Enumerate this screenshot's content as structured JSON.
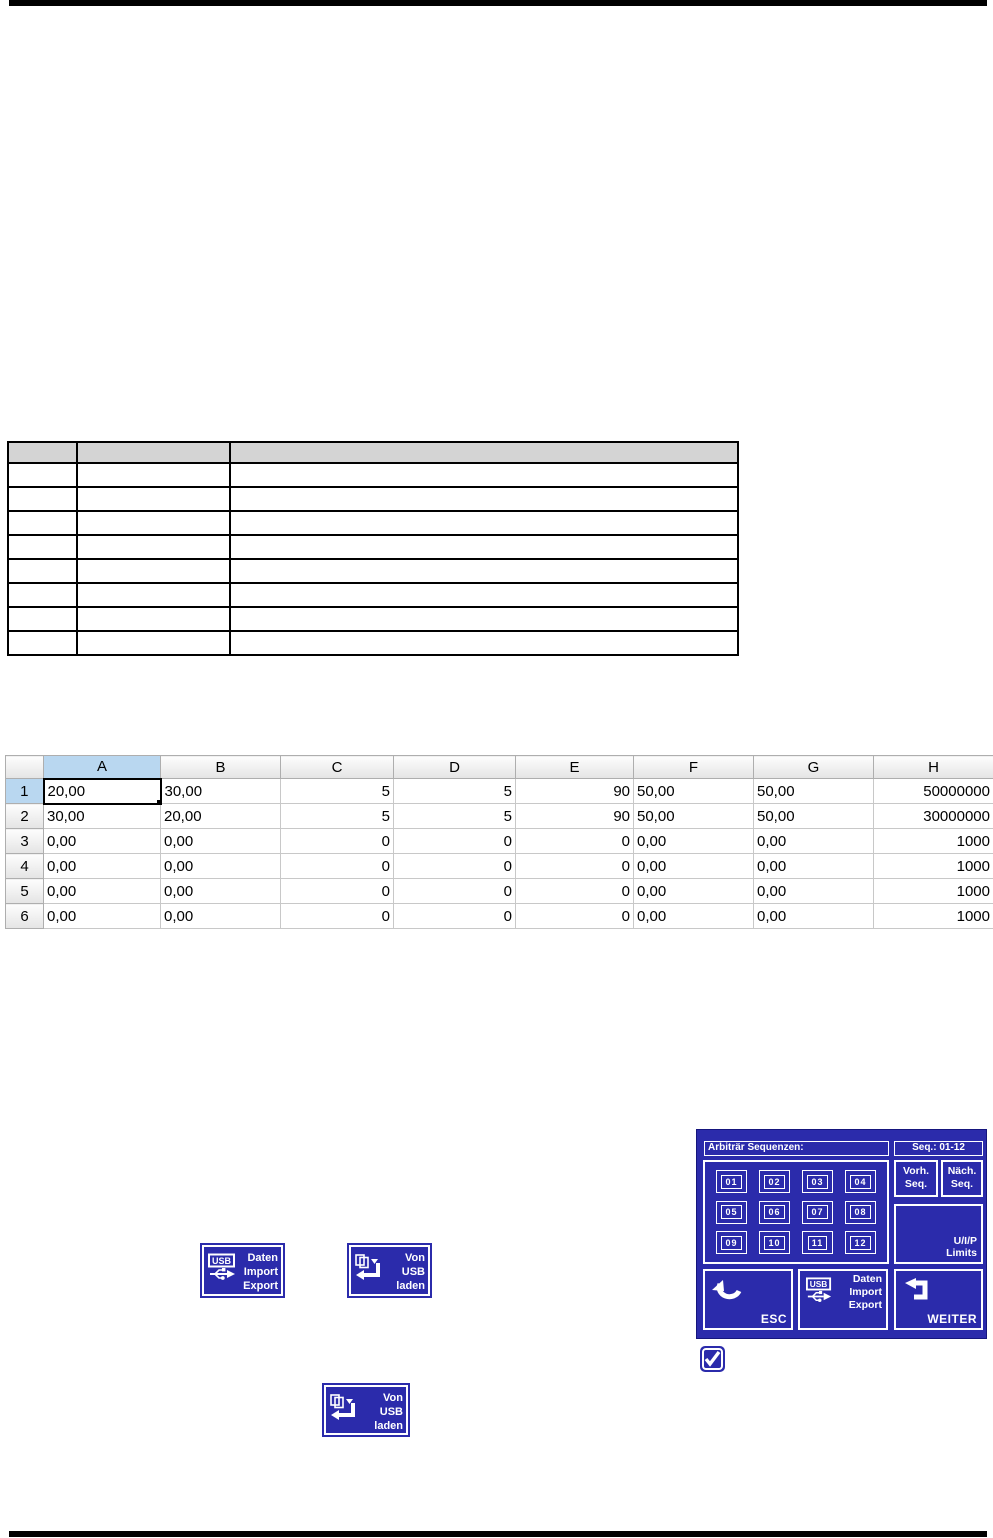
{
  "colors": {
    "hmi_blue": "#2b2bab",
    "selection_blue": "#b9d7f0",
    "doc_table_header_gray": "#d4d4d4"
  },
  "doc_table": {
    "columns": [
      "",
      "",
      ""
    ],
    "rows": [
      [
        "",
        "",
        ""
      ],
      [
        "",
        "",
        ""
      ],
      [
        "",
        "",
        ""
      ],
      [
        "",
        "",
        ""
      ],
      [
        "",
        "",
        ""
      ],
      [
        "",
        "",
        ""
      ],
      [
        "",
        "",
        ""
      ],
      [
        "",
        "",
        ""
      ]
    ]
  },
  "spreadsheet": {
    "column_headers": [
      "A",
      "B",
      "C",
      "D",
      "E",
      "F",
      "G",
      "H"
    ],
    "row_headers": [
      "1",
      "2",
      "3",
      "4",
      "5",
      "6"
    ],
    "rows": [
      [
        "20,00",
        "30,00",
        "5",
        "5",
        "90",
        "50,00",
        "50,00",
        "50000000"
      ],
      [
        "30,00",
        "20,00",
        "5",
        "5",
        "90",
        "50,00",
        "50,00",
        "30000000"
      ],
      [
        "0,00",
        "0,00",
        "0",
        "0",
        "0",
        "0,00",
        "0,00",
        "1000"
      ],
      [
        "0,00",
        "0,00",
        "0",
        "0",
        "0",
        "0,00",
        "0,00",
        "1000"
      ],
      [
        "0,00",
        "0,00",
        "0",
        "0",
        "0",
        "0,00",
        "0,00",
        "1000"
      ],
      [
        "0,00",
        "0,00",
        "0",
        "0",
        "0",
        "0,00",
        "0,00",
        "1000"
      ]
    ],
    "selected_cell": "A1"
  },
  "buttons": {
    "daten_import_export": {
      "icon": "usb-stick-icon",
      "lines": [
        "Daten",
        "Import",
        "Export"
      ]
    },
    "von_usb_laden": {
      "icon": "load-from-usb-icon",
      "lines": [
        "Von",
        "USB",
        "laden"
      ]
    },
    "von_usb_laden_2": {
      "icon": "load-from-usb-icon",
      "lines": [
        "Von",
        "USB",
        "laden"
      ]
    }
  },
  "hmi_panel": {
    "title": "Arbiträr Sequenzen:",
    "seq_label": "Seq.: 01-12",
    "sequences": [
      "01",
      "02",
      "03",
      "04",
      "05",
      "06",
      "07",
      "08",
      "09",
      "10",
      "11",
      "12"
    ],
    "prev_seq": {
      "lines": [
        "Vorh.",
        "Seq."
      ]
    },
    "next_seq": {
      "lines": [
        "Näch.",
        "Seq."
      ]
    },
    "uip_limits": {
      "lines": [
        "U/I/P",
        "Limits"
      ]
    },
    "esc": {
      "icon": "undo-arrow-icon",
      "label": "ESC"
    },
    "daten": {
      "icon": "usb-stick-icon",
      "lines": [
        "Daten",
        "Import",
        "Export"
      ]
    },
    "weiter": {
      "icon": "enter-arrow-icon",
      "label": "WEITER"
    }
  },
  "checkbox": {
    "icon": "checked-checkbox-icon",
    "checked": true
  }
}
